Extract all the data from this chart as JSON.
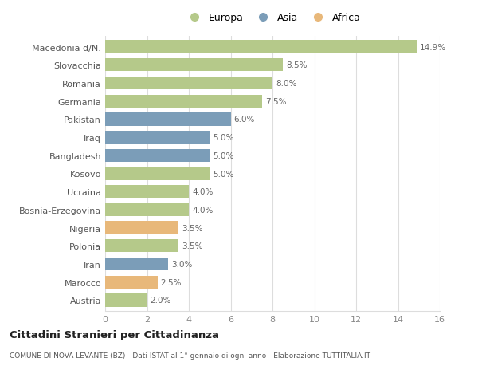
{
  "categories": [
    "Macedonia d/N.",
    "Slovacchia",
    "Romania",
    "Germania",
    "Pakistan",
    "Iraq",
    "Bangladesh",
    "Kosovo",
    "Ucraina",
    "Bosnia-Erzegovina",
    "Nigeria",
    "Polonia",
    "Iran",
    "Marocco",
    "Austria"
  ],
  "values": [
    14.9,
    8.5,
    8.0,
    7.5,
    6.0,
    5.0,
    5.0,
    5.0,
    4.0,
    4.0,
    3.5,
    3.5,
    3.0,
    2.5,
    2.0
  ],
  "continents": [
    "Europa",
    "Europa",
    "Europa",
    "Europa",
    "Asia",
    "Asia",
    "Asia",
    "Europa",
    "Europa",
    "Europa",
    "Africa",
    "Europa",
    "Asia",
    "Africa",
    "Europa"
  ],
  "colors": {
    "Europa": "#b5c98a",
    "Asia": "#7b9db8",
    "Africa": "#e8b87a"
  },
  "legend_entries": [
    "Europa",
    "Asia",
    "Africa"
  ],
  "legend_colors": [
    "#b5c98a",
    "#7b9db8",
    "#e8b87a"
  ],
  "title": "Cittadini Stranieri per Cittadinanza",
  "subtitle": "COMUNE DI NOVA LEVANTE (BZ) - Dati ISTAT al 1° gennaio di ogni anno - Elaborazione TUTTITALIA.IT",
  "xlim": [
    0,
    16
  ],
  "xticks": [
    0,
    2,
    4,
    6,
    8,
    10,
    12,
    14,
    16
  ],
  "background_color": "#ffffff",
  "grid_color": "#dddddd",
  "bar_height": 0.72
}
